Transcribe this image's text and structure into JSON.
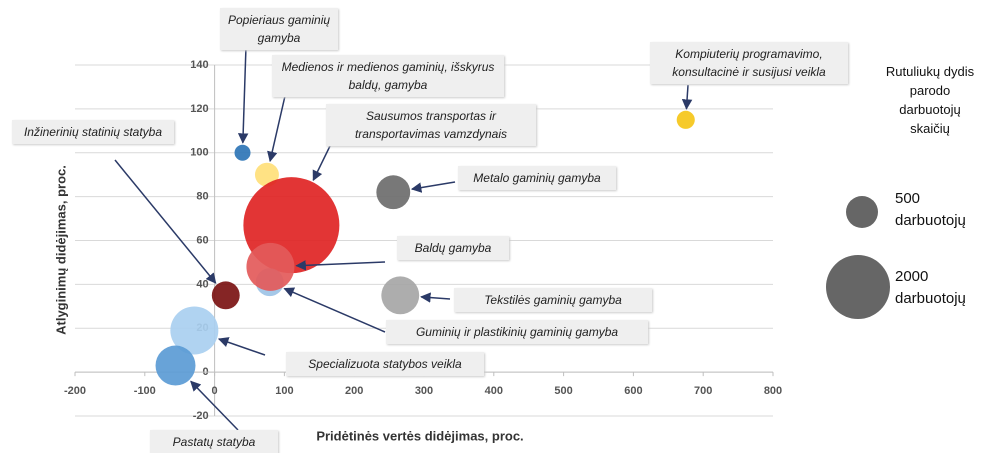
{
  "chart_data": {
    "type": "bubble",
    "x_label": "Pridėtinės vertės didėjimas, proc.",
    "y_label": "Atlyginimų didėjimas, proc.",
    "xlim": [
      -200,
      800
    ],
    "xticks": [
      -200,
      -100,
      0,
      100,
      200,
      300,
      400,
      500,
      600,
      700,
      800
    ],
    "ylim": [
      -20,
      140
    ],
    "yticks": [
      -20,
      0,
      20,
      40,
      60,
      80,
      100,
      120,
      140
    ],
    "grid": true,
    "points": [
      {
        "label": "Popieriaus gaminių gamyba",
        "x": 40,
        "y": 100,
        "size": 125,
        "color": "#2e75b6"
      },
      {
        "label": "Medienos ir medienos gaminių, išskyrus baldų, gamyba",
        "x": 75,
        "y": 90,
        "size": 280,
        "color": "#ffe07a"
      },
      {
        "label": "Sausumos transportas ir transportavimas vamzdynais",
        "x": 110,
        "y": 67,
        "size": 4500,
        "color": "#e02424"
      },
      {
        "label": "Guminių ir plastikinių gaminių gamyba",
        "x": 79,
        "y": 41,
        "size": 380,
        "color": "#9dc3e6"
      },
      {
        "label": "Baldų gamyba",
        "x": 80,
        "y": 48,
        "size": 1125,
        "color": "#e35a5a"
      },
      {
        "label": "Kompiuterių programavimo, konsultacinė ir susijusi veikla",
        "x": 675,
        "y": 115,
        "size": 160,
        "color": "#f5c518"
      },
      {
        "label": "Metalo gaminių gamyba",
        "x": 256,
        "y": 82,
        "size": 560,
        "color": "#6d6d6d"
      },
      {
        "label": "Tekstilės gaminių gamyba",
        "x": 266,
        "y": 35,
        "size": 700,
        "color": "#a6a6a6"
      },
      {
        "label": "Inžinerinių statinių statyba",
        "x": 16,
        "y": 35,
        "size": 380,
        "color": "#7b1212"
      },
      {
        "label": "Specializuota statybos veikla",
        "x": -29,
        "y": 19,
        "size": 1125,
        "color": "#a9cff0"
      },
      {
        "label": "Pastatų statyba",
        "x": -56,
        "y": 3,
        "size": 780,
        "color": "#5b9bd5"
      }
    ],
    "size_legend_title": "Rutuliukų dydis parodo darbuotojų skaičių",
    "size_legend": [
      {
        "value": 500,
        "label": "500 darbuotojų"
      },
      {
        "value": 2000,
        "label": "2000 darbuotojų"
      }
    ]
  }
}
